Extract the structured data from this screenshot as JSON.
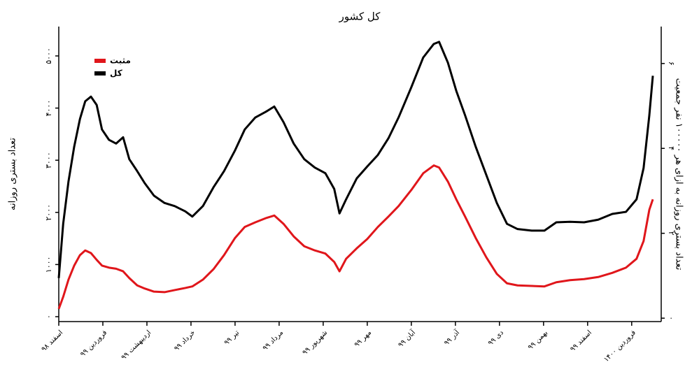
{
  "chart_data": {
    "type": "line",
    "title": "کل کشور",
    "ylabel": "تعداد بستری روزانه",
    "y2label": "تعداد بستری روزانه به ازای هر ۱۰۰۰۰۰ نفر جمعیت",
    "legend": "upper left",
    "xlim": [
      0,
      13.67
    ],
    "xticks": [
      {
        "value": 0,
        "label": "اسفند ۹۸"
      },
      {
        "value": 1,
        "label": "فروردین ۹۹"
      },
      {
        "value": 2,
        "label": "اردیبهشت ۹۹"
      },
      {
        "value": 3,
        "label": "خرداد ۹۹"
      },
      {
        "value": 4,
        "label": "تیر ۹۹"
      },
      {
        "value": 5,
        "label": "مرداد ۹۹"
      },
      {
        "value": 6,
        "label": "شهریور ۹۹"
      },
      {
        "value": 7,
        "label": "مهر ۹۹"
      },
      {
        "value": 8,
        "label": "آبان ۹۹"
      },
      {
        "value": 9,
        "label": "آذر ۹۹"
      },
      {
        "value": 10,
        "label": "دی ۹۹"
      },
      {
        "value": 11,
        "label": "بهمن ۹۹"
      },
      {
        "value": 12,
        "label": "اسفند ۹۹"
      },
      {
        "value": 13,
        "label": "فروردین ۱۴۰۰"
      }
    ],
    "ylim": [
      -94,
      5563
    ],
    "yticks": [
      {
        "value": 0,
        "label": "۰"
      },
      {
        "value": 1000,
        "label": "۱۰۰۰"
      },
      {
        "value": 2000,
        "label": "۲۰۰۰"
      },
      {
        "value": 3000,
        "label": "۳۰۰۰"
      },
      {
        "value": 4000,
        "label": "۴۰۰۰"
      },
      {
        "value": 5000,
        "label": "۵۰۰۰"
      }
    ],
    "y2lim": [
      -0.08,
      6.87
    ],
    "y2ticks": [
      {
        "value": 0,
        "label": "۰"
      },
      {
        "value": 2,
        "label": "۲"
      },
      {
        "value": 4,
        "label": "۴"
      },
      {
        "value": 6,
        "label": "۶"
      }
    ],
    "x": [
      0,
      0.1,
      0.22,
      0.35,
      0.48,
      0.6,
      0.73,
      0.86,
      0.98,
      1.14,
      1.3,
      1.46,
      1.6,
      1.78,
      1.95,
      2.16,
      2.4,
      2.63,
      2.87,
      3.03,
      3.27,
      3.51,
      3.75,
      4.0,
      4.22,
      4.46,
      4.7,
      4.89,
      5.1,
      5.33,
      5.57,
      5.81,
      6.05,
      6.25,
      6.37,
      6.52,
      6.76,
      7.0,
      7.24,
      7.48,
      7.71,
      8.0,
      8.27,
      8.51,
      8.63,
      8.83,
      9.02,
      9.22,
      9.46,
      9.7,
      9.94,
      10.17,
      10.41,
      10.73,
      11.02,
      11.29,
      11.6,
      11.92,
      12.24,
      12.56,
      12.87,
      13.11,
      13.27,
      13.4,
      13.48
    ],
    "series": [
      {
        "name": "مثبت",
        "color": "#e0161b",
        "values": [
          150,
          380,
          710,
          980,
          1180,
          1270,
          1220,
          1090,
          980,
          940,
          920,
          870,
          740,
          600,
          540,
          480,
          470,
          510,
          550,
          580,
          710,
          910,
          1180,
          1510,
          1720,
          1810,
          1890,
          1940,
          1780,
          1540,
          1350,
          1270,
          1210,
          1050,
          870,
          1110,
          1310,
          1490,
          1720,
          1920,
          2120,
          2430,
          2750,
          2900,
          2860,
          2590,
          2250,
          1920,
          1510,
          1140,
          820,
          640,
          600,
          590,
          580,
          660,
          700,
          720,
          760,
          840,
          940,
          1110,
          1450,
          2050,
          2250
        ]
      },
      {
        "name": "کل",
        "color": "#000000",
        "values": [
          740,
          1780,
          2590,
          3260,
          3790,
          4130,
          4220,
          4060,
          3590,
          3390,
          3320,
          3440,
          3020,
          2790,
          2560,
          2320,
          2180,
          2120,
          2020,
          1920,
          2120,
          2480,
          2790,
          3190,
          3590,
          3820,
          3930,
          4030,
          3730,
          3320,
          3020,
          2860,
          2750,
          2450,
          1980,
          2250,
          2650,
          2880,
          3100,
          3420,
          3820,
          4400,
          4970,
          5230,
          5270,
          4870,
          4330,
          3860,
          3260,
          2720,
          2180,
          1780,
          1680,
          1650,
          1650,
          1810,
          1820,
          1810,
          1860,
          1970,
          2010,
          2250,
          2850,
          3860,
          4620
        ]
      }
    ]
  }
}
